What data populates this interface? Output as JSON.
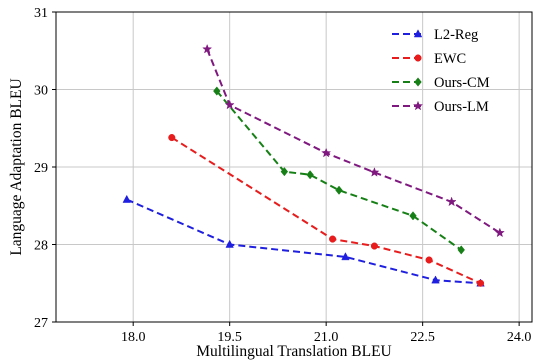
{
  "chart_data": {
    "type": "line",
    "xlabel": "Multilingual Translation BLEU",
    "ylabel": "Language Adaptation BLEU",
    "xlim": [
      16.8,
      24.2
    ],
    "ylim": [
      27,
      31
    ],
    "xticks": [
      18.0,
      19.5,
      21.0,
      22.5,
      24.0
    ],
    "xtick_labels": [
      "18.0",
      "19.5",
      "21.0",
      "22.5",
      "24.0"
    ],
    "yticks": [
      27,
      28,
      29,
      30,
      31
    ],
    "ytick_labels": [
      "27",
      "28",
      "29",
      "30",
      "31"
    ],
    "grid": true,
    "legend_position": "top-right",
    "series": [
      {
        "name": "L2-Reg",
        "color": "#1f1fe0",
        "marker": "triangle",
        "x": [
          17.9,
          19.5,
          21.3,
          22.7,
          23.4
        ],
        "y": [
          28.58,
          28.0,
          27.84,
          27.54,
          27.5
        ]
      },
      {
        "name": "EWC",
        "color": "#e81c1c",
        "marker": "circle",
        "x": [
          18.6,
          21.1,
          21.75,
          22.6,
          23.4
        ],
        "y": [
          29.38,
          28.07,
          27.98,
          27.8,
          27.5
        ]
      },
      {
        "name": "Ours-CM",
        "color": "#168016",
        "marker": "diamond",
        "x": [
          19.3,
          20.35,
          20.75,
          21.2,
          22.35,
          23.1
        ],
        "y": [
          29.98,
          28.94,
          28.9,
          28.7,
          28.37,
          27.93
        ]
      },
      {
        "name": "Ours-LM",
        "color": "#7f187f",
        "marker": "star",
        "x": [
          19.15,
          19.5,
          21.0,
          21.75,
          22.95,
          23.7
        ],
        "y": [
          30.52,
          29.8,
          29.18,
          28.93,
          28.55,
          28.15
        ]
      }
    ]
  }
}
